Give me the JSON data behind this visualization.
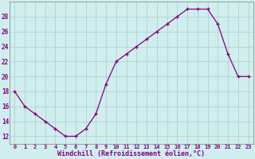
{
  "x": [
    0,
    1,
    2,
    3,
    4,
    5,
    6,
    7,
    8,
    9,
    10,
    11,
    12,
    13,
    14,
    15,
    16,
    17,
    18,
    19,
    20,
    21,
    22,
    23
  ],
  "y": [
    18,
    16,
    15,
    14,
    13,
    12,
    12,
    13,
    15,
    19,
    22,
    23,
    24,
    25,
    26,
    27,
    28,
    29,
    29,
    29,
    27,
    23,
    20,
    20
  ],
  "xlim": [
    -0.5,
    23.5
  ],
  "ylim": [
    11,
    30
  ],
  "yticks": [
    12,
    14,
    16,
    18,
    20,
    22,
    24,
    26,
    28
  ],
  "xtick_labels": [
    "0",
    "1",
    "2",
    "3",
    "4",
    "5",
    "6",
    "7",
    "8",
    "9",
    "10",
    "11",
    "12",
    "13",
    "14",
    "15",
    "16",
    "17",
    "18",
    "19",
    "20",
    "21",
    "22",
    "23"
  ],
  "line_color": "#800080",
  "marker_color": "#800080",
  "bg_color": "#d0eeee",
  "grid_color": "#aacccc",
  "xlabel": "Windchill (Refroidissement éolien,°C)",
  "xlabel_color": "#800080",
  "fig_bg": "#d0eeee"
}
